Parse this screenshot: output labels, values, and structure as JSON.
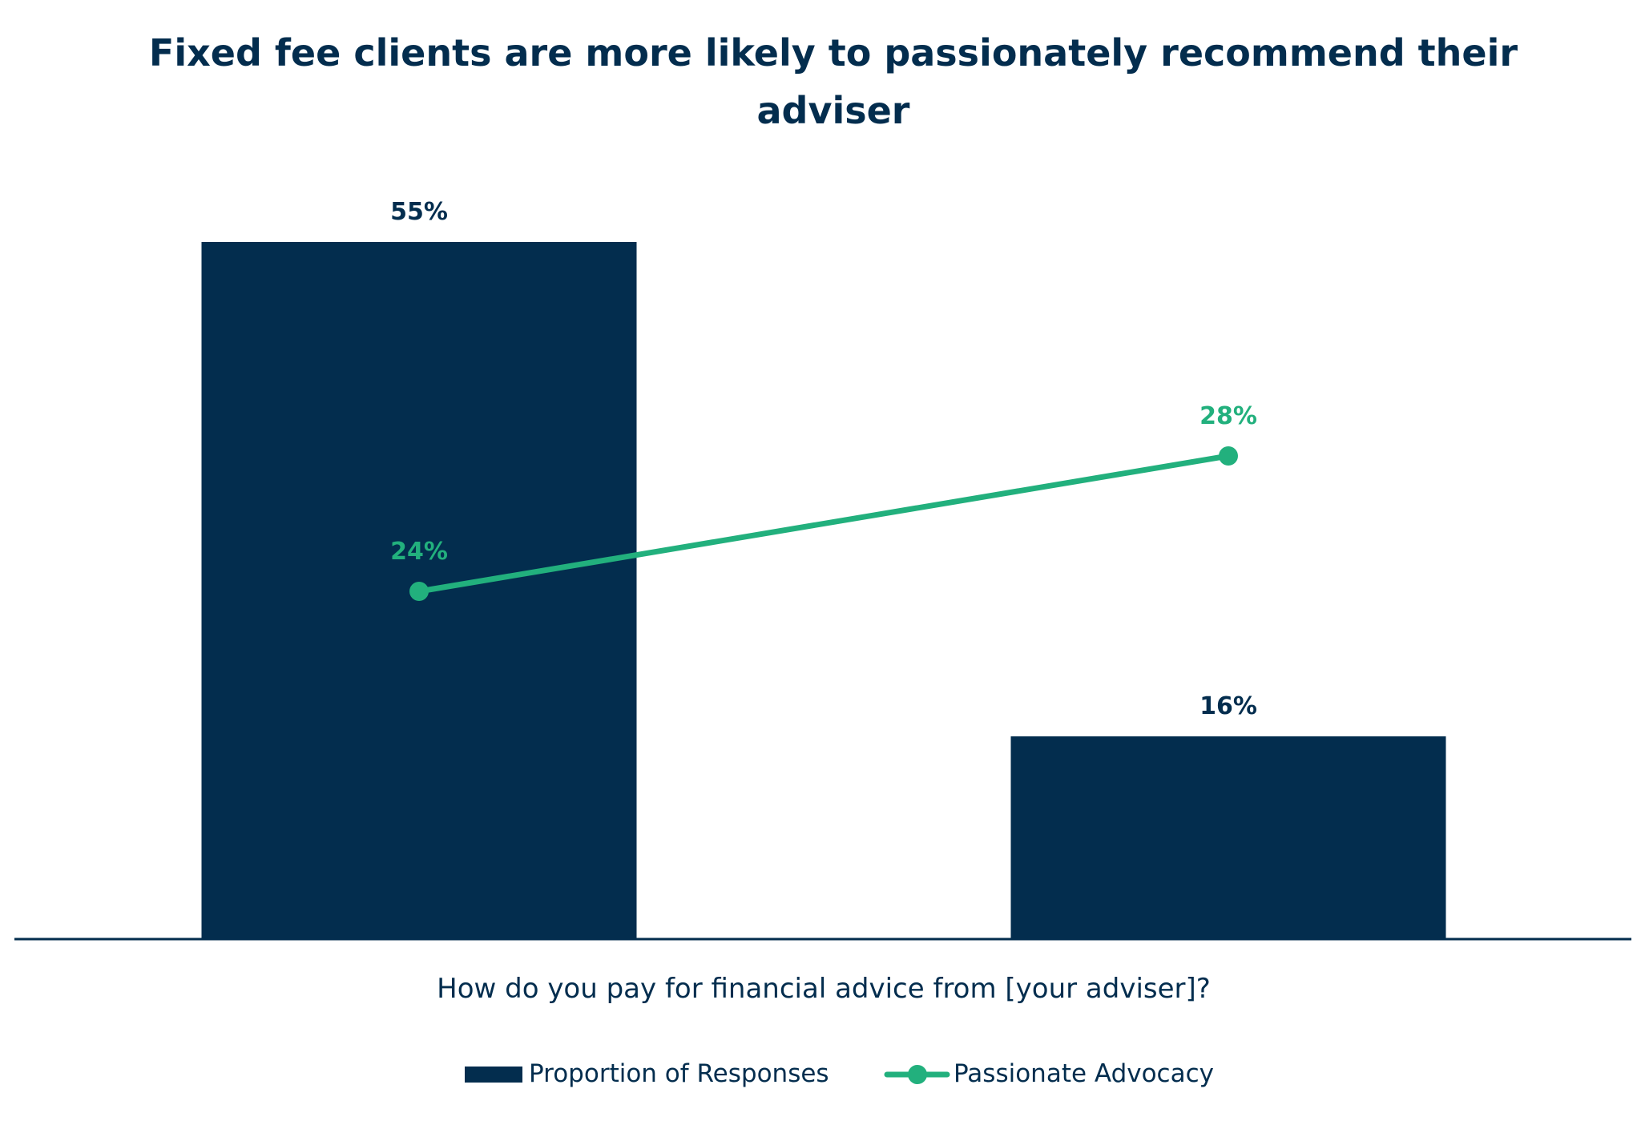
{
  "chart_data": {
    "type": "bar",
    "title": "Fixed fee clients are more likely to passionately recommend their adviser",
    "title_lines": [
      "Fixed fee clients are more likely to passionately recommend their",
      "adviser"
    ],
    "xlabel": "How do you pay for financial advice from [your adviser]?",
    "ylabel": "",
    "categories": [
      "",
      ""
    ],
    "ylim": [
      0,
      55
    ],
    "grid": false,
    "legend_placement": "bottom",
    "series": [
      {
        "name": "Proportion of Responses",
        "type": "bar",
        "values": [
          55,
          16
        ],
        "labels": [
          "55%",
          "16%"
        ],
        "color": "#032d4e"
      },
      {
        "name": "Passionate Advocacy",
        "type": "line",
        "axis": "secondary",
        "values": [
          24,
          28
        ],
        "labels": [
          "24%",
          "28%"
        ],
        "color": "#22b07d"
      }
    ]
  }
}
